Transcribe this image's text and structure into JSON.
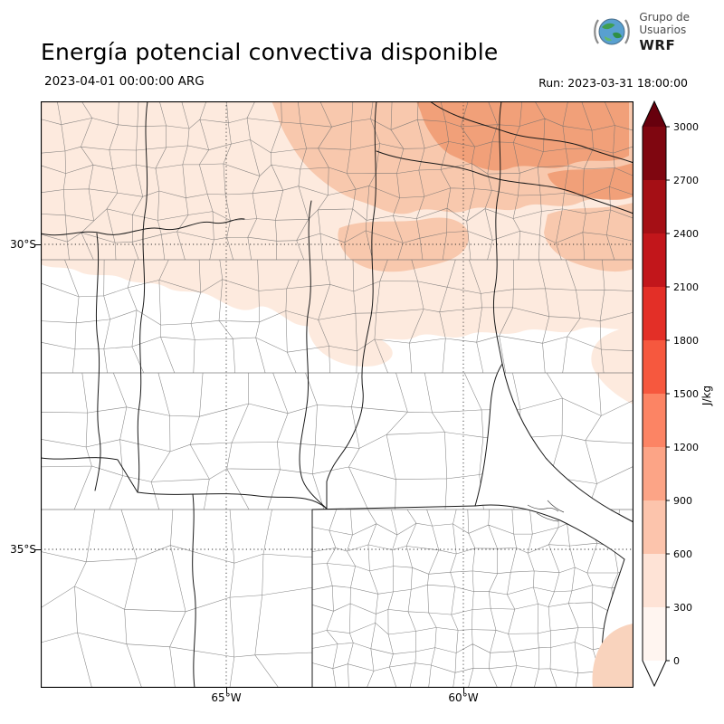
{
  "header": {
    "title": "Energía potencial convectiva disponible",
    "logo": {
      "line1": "Grupo de",
      "line2": "Usuarios",
      "line3": "WRF"
    }
  },
  "subheader": {
    "valid_time": "2023-04-01 00:00:00 ARG",
    "run_label": "Run: 2023-03-31 18:00:00"
  },
  "axes": {
    "y_ticks": [
      {
        "label": "30°S"
      },
      {
        "label": "35°S"
      }
    ],
    "x_ticks": [
      {
        "label": "65°W"
      },
      {
        "label": "60°W"
      }
    ]
  },
  "colorbar": {
    "unit": "J/kg",
    "tick_labels": [
      "0",
      "300",
      "600",
      "900",
      "1200",
      "1500",
      "1800",
      "2100",
      "2400",
      "2700",
      "3000"
    ],
    "segment_colors_bottom_to_top": [
      "#fff5f0",
      "#fee3d6",
      "#fcc4ac",
      "#fca486",
      "#fc8464",
      "#f6583e",
      "#e32f27",
      "#c2161b",
      "#a50f15",
      "#7f0610"
    ],
    "over_arrow_color": "#67000d",
    "under_arrow_color": "#ffffff"
  },
  "chart_data": {
    "type": "heatmap",
    "title": "Energía potencial convectiva disponible",
    "variable": "CAPE",
    "units": "J/kg",
    "levels": [
      0,
      300,
      600,
      900,
      1200,
      1500,
      1800,
      2100,
      2400,
      2700,
      3000
    ],
    "colorbar_extend": "both",
    "valid_time": "2023-04-01 00:00:00 ARG",
    "run_time": "2023-03-31 18:00:00",
    "lat_ticks": [
      "30°S",
      "35°S"
    ],
    "lon_ticks": [
      "65°W",
      "60°W"
    ],
    "field_summary": "Shaded CAPE of roughly 0–1200 J/kg over the north and northeast of the domain with the maximum band near the top-right; near-zero values over the center and south; a small shaded patch over the ocean in the bottom-right corner."
  }
}
